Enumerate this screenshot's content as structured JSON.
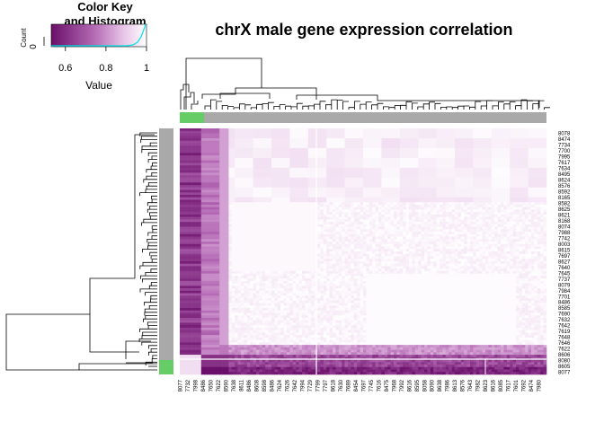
{
  "chart_data": {
    "type": "heatmap",
    "title": "chrX male gene expression correlation",
    "color_key": {
      "title_line1": "Color Key",
      "title_line2": "and Histogram",
      "xlabel": "Value",
      "ylabel": "Count",
      "ytick": "0",
      "xticks": [
        "0.6",
        "0.8",
        "1"
      ],
      "xtick_values": [
        0.6,
        0.8,
        1.0
      ],
      "range": [
        0.53,
        1.0
      ],
      "low_color": "#6a0f6a",
      "high_color": "#ffffff",
      "hist_color": "#00ffff"
    },
    "row_labels": [
      "8078",
      "8474",
      "7734",
      "7700",
      "7995",
      "7617",
      "7634",
      "8495",
      "8624",
      "8576",
      "8592",
      "8165",
      "8582",
      "8625",
      "8621",
      "8168",
      "8074",
      "7988",
      "7742",
      "8003",
      "8615",
      "7697",
      "8627",
      "7640",
      "7645",
      "7737",
      "8079",
      "7984",
      "7701",
      "8486",
      "8585",
      "7690",
      "7632",
      "7642",
      "7619",
      "7648",
      "7646",
      "7622",
      "8606",
      "8080",
      "8605",
      "8077"
    ],
    "col_labels": [
      "8077",
      "7732",
      "7998",
      "8486",
      "7650",
      "7622",
      "8590",
      "7638",
      "8611",
      "8486",
      "8608",
      "8598",
      "8486",
      "7624",
      "7626",
      "7642",
      "7994",
      "7729",
      "7799",
      "7797",
      "8618",
      "7630",
      "7689",
      "8454",
      "7697",
      "7745",
      "7616",
      "8475",
      "7968",
      "7992",
      "8616",
      "8595",
      "8058",
      "8090",
      "8638",
      "7986",
      "8613",
      "8576",
      "7643",
      "7982",
      "8623",
      "8616",
      "8085",
      "7617",
      "7601",
      "7692",
      "8474",
      "7980"
    ],
    "row_sidebar_colors": [
      "#a9a9a9",
      "#66cc66"
    ],
    "col_sidebar_colors": [
      "#66cc66",
      "#a9a9a9"
    ],
    "colors": {
      "dark": "#6a0f6a",
      "sep_line": "#ffffff"
    }
  }
}
